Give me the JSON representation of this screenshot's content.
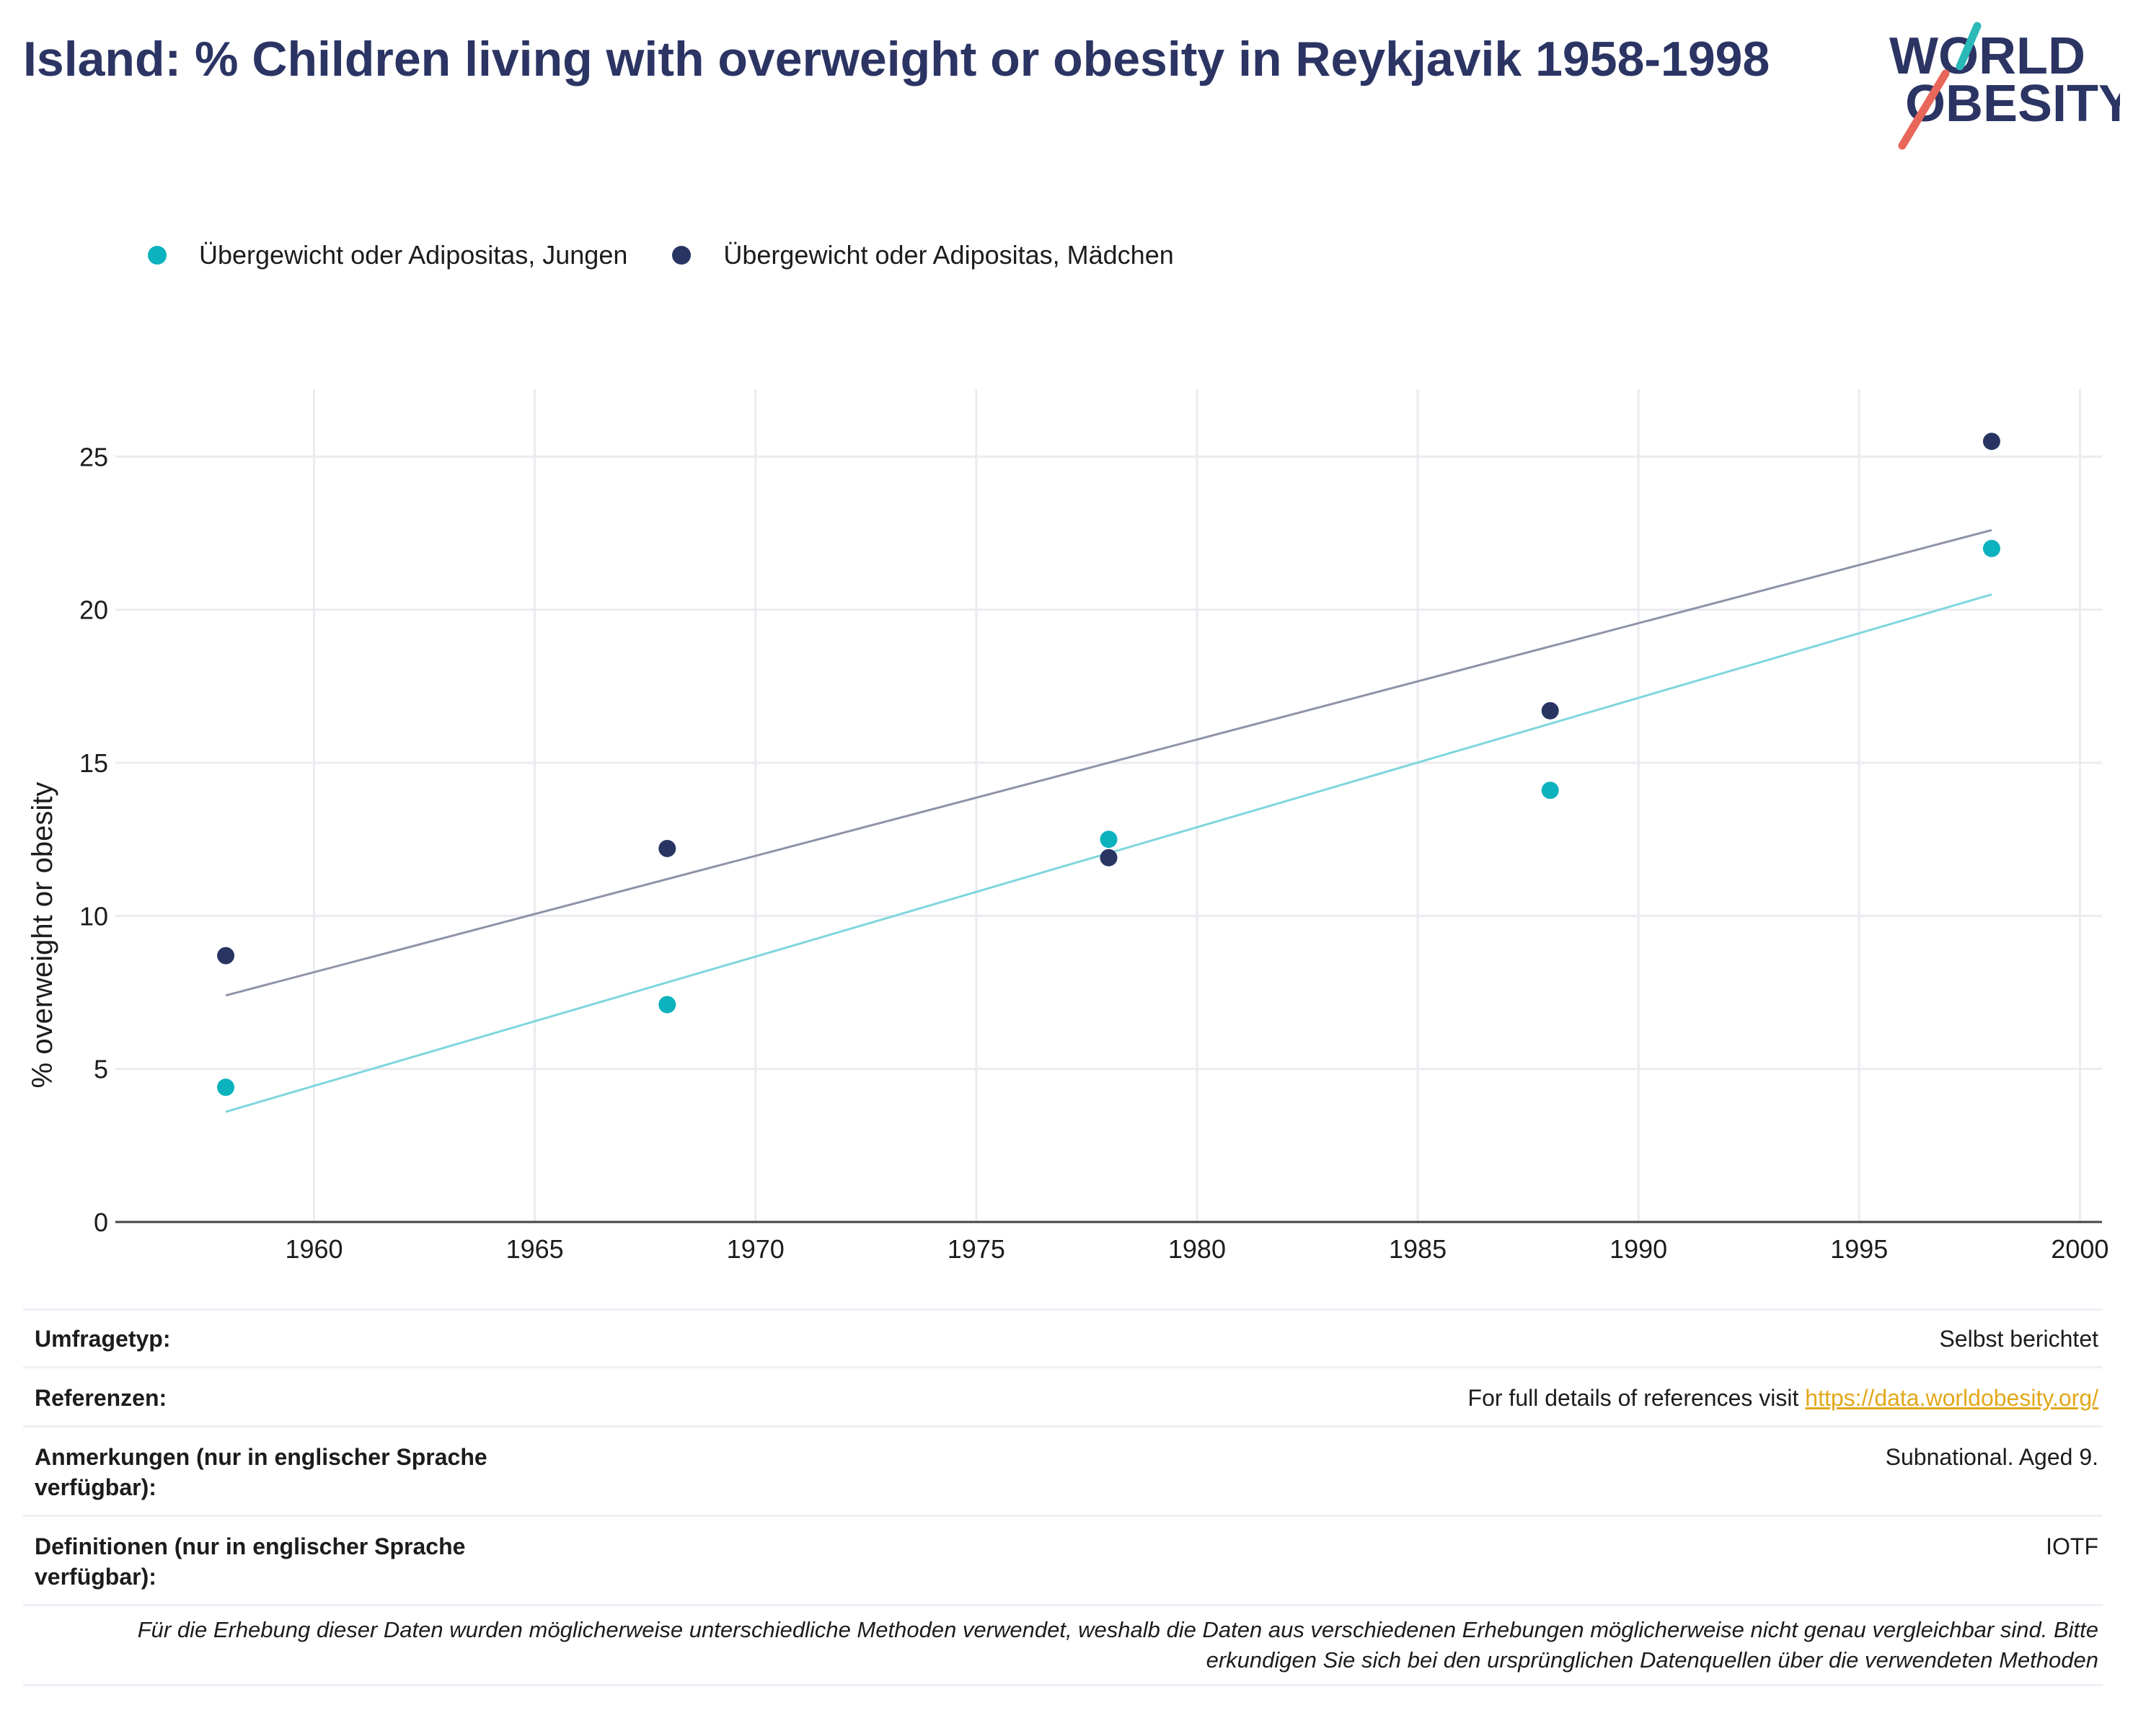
{
  "title": "Island: % Children living with overweight or obesity in Reykjavik 1958-1998",
  "logo": {
    "line1": "WORLD",
    "line2": "OBESITY",
    "accent_teal": "#2bb8b8",
    "accent_red": "#e8665a",
    "text_color": "#2b3463"
  },
  "legend": [
    {
      "label": "Übergewicht oder Adipositas, Jungen",
      "color": "#0cb2bd"
    },
    {
      "label": "Übergewicht oder Adipositas, Mädchen",
      "color": "#283563"
    }
  ],
  "chart_data": {
    "type": "scatter",
    "title": "",
    "xlabel": "",
    "ylabel": "% overweight or obesity",
    "xlim": [
      1955.5,
      2000.5
    ],
    "ylim": [
      0,
      27.2
    ],
    "x_ticks": [
      1960,
      1965,
      1970,
      1975,
      1980,
      1985,
      1990,
      1995,
      2000
    ],
    "y_ticks": [
      0,
      5,
      10,
      15,
      20,
      25
    ],
    "grid": true,
    "legend_position": "top-left",
    "series": [
      {
        "name": "Übergewicht oder Adipositas, Jungen",
        "color": "#0cb2bd",
        "trend_color": "#7fd6dc",
        "x": [
          1958,
          1968,
          1978,
          1988,
          1998
        ],
        "y": [
          4.4,
          7.1,
          12.5,
          14.1,
          22.0
        ],
        "trend": [
          [
            1958,
            3.6
          ],
          [
            1998,
            20.5
          ]
        ]
      },
      {
        "name": "Übergewicht oder Adipositas, Mädchen",
        "color": "#283563",
        "trend_color": "#8f93a8",
        "x": [
          1958,
          1968,
          1978,
          1988,
          1998
        ],
        "y": [
          8.7,
          12.2,
          11.9,
          16.7,
          25.5
        ],
        "trend": [
          [
            1958,
            7.4
          ],
          [
            1998,
            22.6
          ]
        ]
      }
    ]
  },
  "meta": {
    "rows": [
      {
        "label": "Umfragetyp:",
        "value": "Selbst berichtet"
      },
      {
        "label": "Referenzen:",
        "value": "For full details of references visit ",
        "link": "https://data.worldobesity.org/"
      },
      {
        "label": "Anmerkungen (nur in englischer Sprache verfügbar):",
        "value": "Subnational. Aged 9."
      },
      {
        "label": "Definitionen (nur in englischer Sprache verfügbar):",
        "value": "IOTF"
      }
    ],
    "note": "Für die Erhebung dieser Daten wurden möglicherweise unterschiedliche Methoden verwendet, weshalb die Daten aus verschiedenen Erhebungen möglicherweise nicht genau vergleichbar sind. Bitte erkundigen Sie sich bei den ursprünglichen Datenquellen über die verwendeten Methoden"
  }
}
